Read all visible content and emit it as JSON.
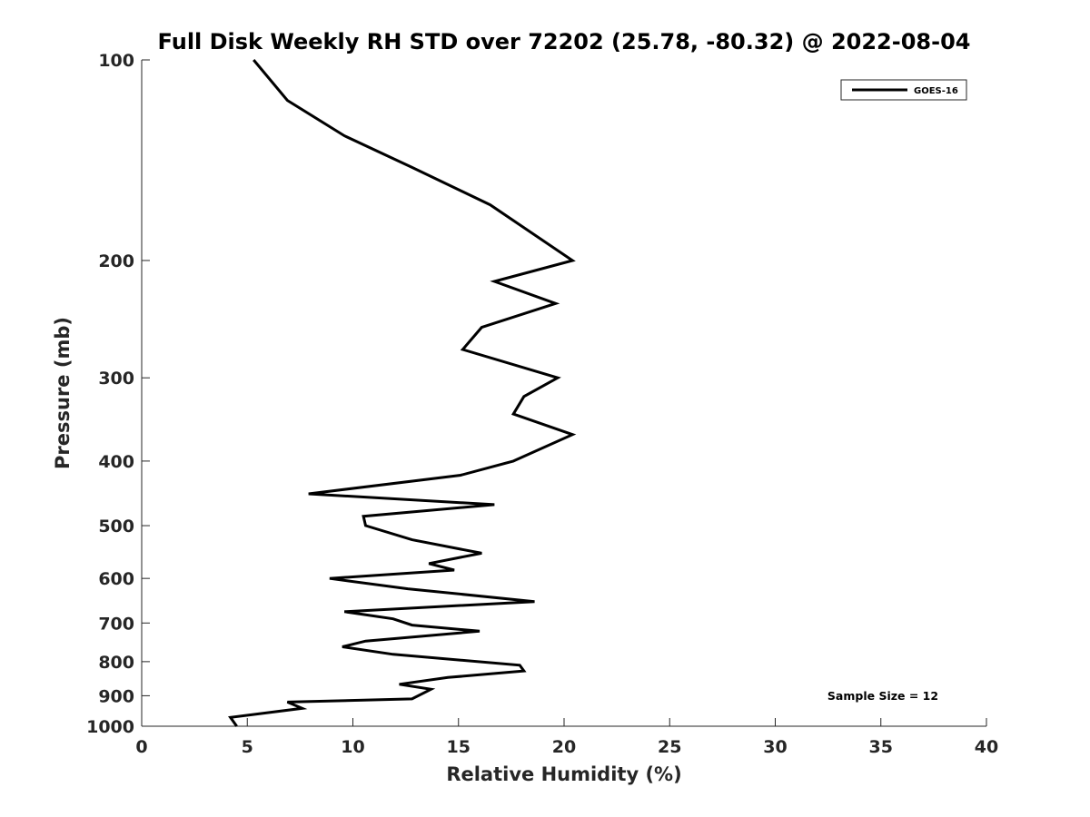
{
  "chart_data": {
    "type": "line",
    "title": "Full Disk Weekly RH STD over 72202 (25.78, -80.32) @ 2022-08-04",
    "xlabel": "Relative Humidity (%)",
    "ylabel": "Pressure (mb)",
    "xlim": [
      0,
      40
    ],
    "ylim": [
      100,
      1000
    ],
    "y_scale": "log",
    "y_reversed": true,
    "grid": false,
    "legend_position": "top-right",
    "x_ticks": [
      "0",
      "5",
      "10",
      "15",
      "20",
      "25",
      "30",
      "35",
      "40"
    ],
    "y_ticks": [
      "100",
      "200",
      "300",
      "400",
      "500",
      "600",
      "700",
      "800",
      "900",
      "1000"
    ],
    "series": [
      {
        "name": "GOES-16",
        "color": "#000000",
        "points": [
          [
            5.3,
            100
          ],
          [
            6.9,
            115
          ],
          [
            9.6,
            130
          ],
          [
            12.8,
            145
          ],
          [
            16.5,
            165
          ],
          [
            20.4,
            200
          ],
          [
            16.7,
            215
          ],
          [
            19.6,
            232
          ],
          [
            16.1,
            252
          ],
          [
            15.2,
            272
          ],
          [
            19.7,
            300
          ],
          [
            18.1,
            320
          ],
          [
            17.6,
            340
          ],
          [
            20.4,
            365
          ],
          [
            17.6,
            400
          ],
          [
            15.1,
            420
          ],
          [
            7.9,
            448
          ],
          [
            16.7,
            465
          ],
          [
            10.5,
            484
          ],
          [
            10.6,
            500
          ],
          [
            12.8,
            525
          ],
          [
            16.1,
            550
          ],
          [
            13.6,
            570
          ],
          [
            14.8,
            583
          ],
          [
            8.9,
            600
          ],
          [
            12.6,
            622
          ],
          [
            18.6,
            650
          ],
          [
            9.6,
            673
          ],
          [
            11.9,
            690
          ],
          [
            12.8,
            705
          ],
          [
            16.0,
            720
          ],
          [
            10.6,
            745
          ],
          [
            9.5,
            760
          ],
          [
            11.9,
            780
          ],
          [
            17.9,
            810
          ],
          [
            18.1,
            826
          ],
          [
            14.5,
            845
          ],
          [
            12.2,
            865
          ],
          [
            13.7,
            880
          ],
          [
            12.8,
            910
          ],
          [
            6.9,
            920
          ],
          [
            7.6,
            940
          ],
          [
            4.2,
            970
          ],
          [
            4.5,
            1000
          ]
        ]
      }
    ],
    "annotation": "Sample Size = 12"
  }
}
